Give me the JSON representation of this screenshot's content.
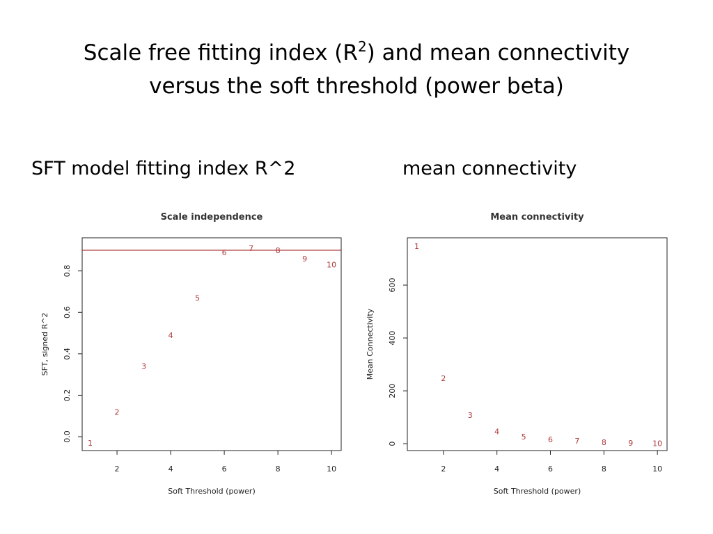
{
  "slide": {
    "title_parts": [
      "Scale free fitting index (R",
      "2",
      ") and mean connectivity",
      "versus the soft threshold (power beta)"
    ],
    "headings": [
      "SFT model fitting index R^2",
      "mean connectivity"
    ]
  },
  "chart_data": [
    {
      "type": "scatter",
      "title": "Scale independence",
      "x_label": "Soft Threshold (power)",
      "y_label": "SFT, signed R^2",
      "x": [
        1,
        2,
        3,
        4,
        5,
        6,
        7,
        8,
        9,
        10
      ],
      "values": [
        -0.03,
        0.12,
        0.34,
        0.49,
        0.67,
        0.89,
        0.91,
        0.9,
        0.86,
        0.83
      ],
      "color": "#b03a3a",
      "hline": 0.9,
      "hline_color": "#a52a2a",
      "xlim": [
        0.7,
        10.36
      ],
      "ylim": [
        -0.067,
        0.96
      ],
      "xticks": [
        2,
        4,
        6,
        8,
        10
      ],
      "yticks": [
        {
          "value": 0,
          "label": "0.0"
        },
        0.2,
        0.4,
        0.6,
        0.8
      ]
    },
    {
      "type": "scatter",
      "title": "Mean connectivity",
      "x_label": "Soft Threshold (power)",
      "y_label": "Mean Connectivity",
      "x": [
        1,
        2,
        3,
        4,
        5,
        6,
        7,
        8,
        9,
        10
      ],
      "values": [
        747,
        247,
        108,
        47,
        26,
        16,
        11,
        5,
        3,
        2
      ],
      "color": "#b03a3a",
      "xlim": [
        0.65,
        10.36
      ],
      "ylim": [
        -26,
        779
      ],
      "xticks": [
        2,
        4,
        6,
        8,
        10
      ],
      "yticks": [
        0,
        200,
        400,
        600
      ]
    }
  ]
}
